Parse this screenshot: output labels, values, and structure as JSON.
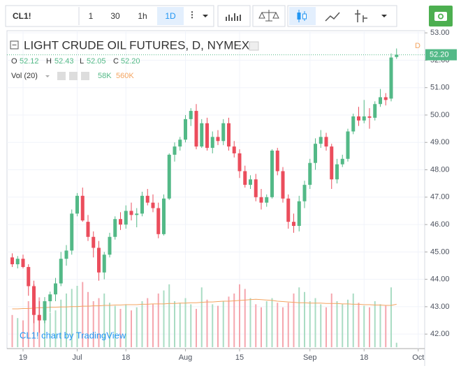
{
  "toolbar": {
    "symbol": "CL1!",
    "intervals": [
      "1",
      "30",
      "1h",
      "1D"
    ]
  },
  "chart_data": {
    "type": "candlestick",
    "title": "LIGHT CRUDE OIL FUTURES, D, NYMEX",
    "ohlc_legend": [
      {
        "label": "O",
        "value": "52.12"
      },
      {
        "label": "H",
        "value": "52.43"
      },
      {
        "label": "L",
        "value": "52.05"
      },
      {
        "label": "C",
        "value": "52.20"
      }
    ],
    "volume_legend": {
      "name": "Vol (20)",
      "value": "58K",
      "ma": "560K"
    },
    "interval_marker": "D",
    "last_price_label": "52.20",
    "watermark": "CL1! chart by TradingView",
    "categories": [
      null,
      null,
      "19",
      null,
      null,
      null,
      null,
      null,
      null,
      null,
      null,
      null,
      "Jul",
      null,
      null,
      null,
      null,
      null,
      null,
      null,
      null,
      "18",
      null,
      null,
      null,
      null,
      null,
      null,
      null,
      null,
      null,
      null,
      "Aug",
      null,
      null,
      null,
      null,
      null,
      null,
      null,
      null,
      null,
      "15",
      null,
      null,
      null,
      null,
      null,
      null,
      null,
      null,
      null,
      null,
      null,
      null,
      "Sep",
      null,
      null,
      null,
      null,
      null,
      null,
      null,
      null,
      null,
      "18",
      null,
      null,
      null,
      null,
      null,
      null,
      null,
      null,
      null,
      "Oct"
    ],
    "open": [
      44.8,
      44.55,
      44.75,
      44.45,
      43.75,
      42.7,
      42.5,
      43.2,
      43.45,
      43.85,
      44.75,
      45.05,
      46.4,
      47.05,
      46.1,
      45.55,
      45.15,
      44.25,
      44.9,
      45.55,
      46.2,
      46.0,
      46.5,
      46.35,
      46.4,
      47.05,
      46.8,
      46.6,
      45.65,
      46.95,
      48.55,
      48.85,
      49.1,
      49.85,
      50.15,
      48.85,
      49.7,
      48.8,
      49.2,
      49.05,
      49.7,
      48.85,
      48.6,
      47.95,
      47.45,
      47.65,
      47.0,
      46.8,
      47.0,
      48.7,
      47.95,
      46.95,
      46.1,
      45.95,
      46.85,
      47.45,
      48.25,
      48.95,
      49.2,
      48.85,
      47.65,
      48.2,
      48.4,
      49.4,
      49.95,
      49.8,
      49.95,
      49.9,
      50.4,
      50.65,
      50.6,
      52.12,
      null,
      null,
      null,
      null
    ],
    "high": [
      44.95,
      44.85,
      44.9,
      44.55,
      43.95,
      43.2,
      43.35,
      43.55,
      44.05,
      45.0,
      45.25,
      46.55,
      47.15,
      47.35,
      46.35,
      45.75,
      45.4,
      45.0,
      45.7,
      46.3,
      46.45,
      46.7,
      46.8,
      46.6,
      47.2,
      47.3,
      47.1,
      46.8,
      47.1,
      48.6,
      49.0,
      49.2,
      50.0,
      50.25,
      50.4,
      49.85,
      49.9,
      49.4,
      49.45,
      49.85,
      49.9,
      49.05,
      48.75,
      48.15,
      47.8,
      47.85,
      47.3,
      47.1,
      48.75,
      48.8,
      48.1,
      47.1,
      46.4,
      47.05,
      47.6,
      48.4,
      49.15,
      49.45,
      49.35,
      48.95,
      48.4,
      48.55,
      49.5,
      50.05,
      50.3,
      50.55,
      50.25,
      50.5,
      50.95,
      50.8,
      52.25,
      52.43,
      null,
      null,
      null,
      null
    ],
    "low": [
      44.45,
      44.4,
      44.4,
      43.4,
      42.4,
      42.05,
      42.4,
      42.8,
      43.2,
      43.75,
      44.5,
      44.9,
      46.3,
      46.1,
      45.4,
      44.8,
      43.95,
      44.0,
      44.8,
      45.45,
      45.8,
      45.85,
      46.15,
      45.9,
      46.3,
      46.7,
      46.45,
      45.5,
      45.6,
      46.9,
      48.3,
      48.7,
      49.0,
      49.6,
      48.75,
      48.8,
      48.7,
      48.6,
      48.9,
      48.9,
      48.7,
      48.45,
      47.7,
      47.35,
      47.3,
      46.85,
      46.55,
      46.65,
      46.95,
      47.8,
      46.8,
      45.85,
      45.7,
      45.75,
      46.6,
      47.3,
      48.0,
      48.8,
      48.7,
      47.3,
      47.5,
      48.1,
      48.3,
      49.3,
      49.6,
      49.7,
      49.5,
      49.8,
      50.3,
      50.35,
      50.5,
      52.05,
      null,
      null,
      null,
      null
    ],
    "close": [
      44.55,
      44.75,
      44.45,
      43.75,
      42.7,
      42.5,
      43.2,
      43.45,
      43.85,
      44.75,
      45.05,
      46.4,
      47.05,
      46.15,
      45.55,
      45.15,
      44.25,
      44.9,
      45.55,
      46.2,
      46.0,
      46.5,
      46.35,
      46.4,
      47.05,
      46.8,
      46.6,
      45.65,
      46.95,
      48.55,
      48.85,
      49.1,
      49.85,
      50.15,
      48.85,
      49.7,
      48.8,
      49.2,
      49.05,
      49.7,
      48.85,
      48.6,
      47.95,
      47.45,
      47.65,
      47.0,
      46.8,
      47.0,
      48.7,
      47.95,
      46.95,
      46.1,
      45.95,
      46.85,
      47.45,
      48.25,
      48.95,
      49.2,
      48.85,
      47.65,
      48.2,
      48.4,
      49.4,
      49.95,
      49.8,
      49.95,
      49.9,
      50.4,
      50.65,
      50.55,
      52.1,
      52.2,
      null,
      null,
      null,
      null
    ],
    "volume": [
      420,
      380,
      350,
      600,
      820,
      650,
      500,
      450,
      480,
      620,
      700,
      760,
      800,
      850,
      720,
      600,
      640,
      700,
      580,
      540,
      500,
      560,
      480,
      520,
      600,
      640,
      560,
      700,
      740,
      820,
      600,
      580,
      640,
      560,
      500,
      780,
      620,
      560,
      540,
      600,
      660,
      700,
      820,
      760,
      640,
      560,
      520,
      600,
      640,
      580,
      520,
      580,
      700,
      780,
      720,
      600,
      640,
      560,
      520,
      700,
      600,
      560,
      620,
      700,
      580,
      540,
      520,
      600,
      560,
      540,
      780,
      58,
      null,
      null,
      null,
      null
    ],
    "volume_ma": [
      500,
      500,
      505,
      505,
      510,
      515,
      515,
      520,
      520,
      525,
      525,
      530,
      530,
      535,
      535,
      540,
      540,
      545,
      545,
      550,
      550,
      555,
      555,
      555,
      560,
      560,
      565,
      565,
      565,
      570,
      570,
      575,
      575,
      580,
      580,
      585,
      590,
      590,
      595,
      600,
      600,
      605,
      610,
      615,
      620,
      625,
      620,
      615,
      610,
      600,
      595,
      590,
      585,
      580,
      580,
      575,
      575,
      575,
      570,
      570,
      570,
      565,
      565,
      560,
      560,
      555,
      555,
      550,
      550,
      545,
      545,
      560,
      null,
      null,
      null,
      null
    ],
    "up_color": "#53b987",
    "down_color": "#eb4d5c",
    "volume_up_color": "#a9dcc3",
    "volume_down_color": "#f5a6ae",
    "ma_color": "#f4a460",
    "ylim": [
      41.47,
      53.08
    ],
    "yticks": [
      {
        "value": 42,
        "label": "42.00"
      },
      {
        "value": 43,
        "label": "43.00"
      },
      {
        "value": 44,
        "label": "44.00"
      },
      {
        "value": 45,
        "label": "45.00"
      },
      {
        "value": 46,
        "label": "46.00"
      },
      {
        "value": 47,
        "label": "47.00"
      },
      {
        "value": 48,
        "label": "48.00"
      },
      {
        "value": 49,
        "label": "49.00"
      },
      {
        "value": 50,
        "label": "50.00"
      },
      {
        "value": 51,
        "label": "51.00"
      },
      {
        "value": 52,
        "label": "52.00"
      },
      {
        "value": 53,
        "label": "53.00"
      }
    ],
    "grid": true
  }
}
